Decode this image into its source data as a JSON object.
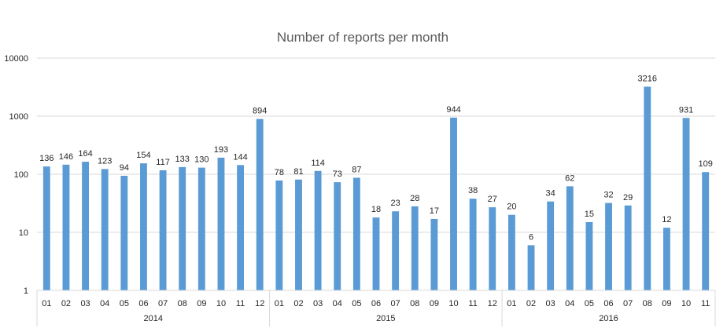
{
  "chart_data": {
    "type": "bar",
    "title": "Number of reports per month",
    "xlabel": "",
    "ylabel": "",
    "yscale": "log",
    "ylim": [
      1,
      10000
    ],
    "yticks": [
      "1",
      "10",
      "100",
      "1000",
      "10000"
    ],
    "grid": true,
    "legend": "none",
    "bar_color": "#5b9bd5",
    "groups": [
      {
        "label": "2014",
        "categories": [
          "01",
          "02",
          "03",
          "04",
          "05",
          "06",
          "07",
          "08",
          "09",
          "10",
          "11",
          "12"
        ],
        "values": [
          136,
          146,
          164,
          123,
          94,
          154,
          117,
          133,
          130,
          193,
          144,
          894
        ]
      },
      {
        "label": "2015",
        "categories": [
          "01",
          "02",
          "03",
          "04",
          "05",
          "06",
          "07",
          "08",
          "09",
          "10",
          "11",
          "12"
        ],
        "values": [
          78,
          81,
          114,
          73,
          87,
          18,
          23,
          28,
          17,
          944,
          38,
          27
        ]
      },
      {
        "label": "2016",
        "categories": [
          "01",
          "02",
          "03",
          "04",
          "05",
          "06",
          "07",
          "08",
          "09",
          "10",
          "11"
        ],
        "values": [
          20,
          6,
          34,
          62,
          15,
          32,
          29,
          3216,
          12,
          931,
          109
        ]
      }
    ]
  }
}
